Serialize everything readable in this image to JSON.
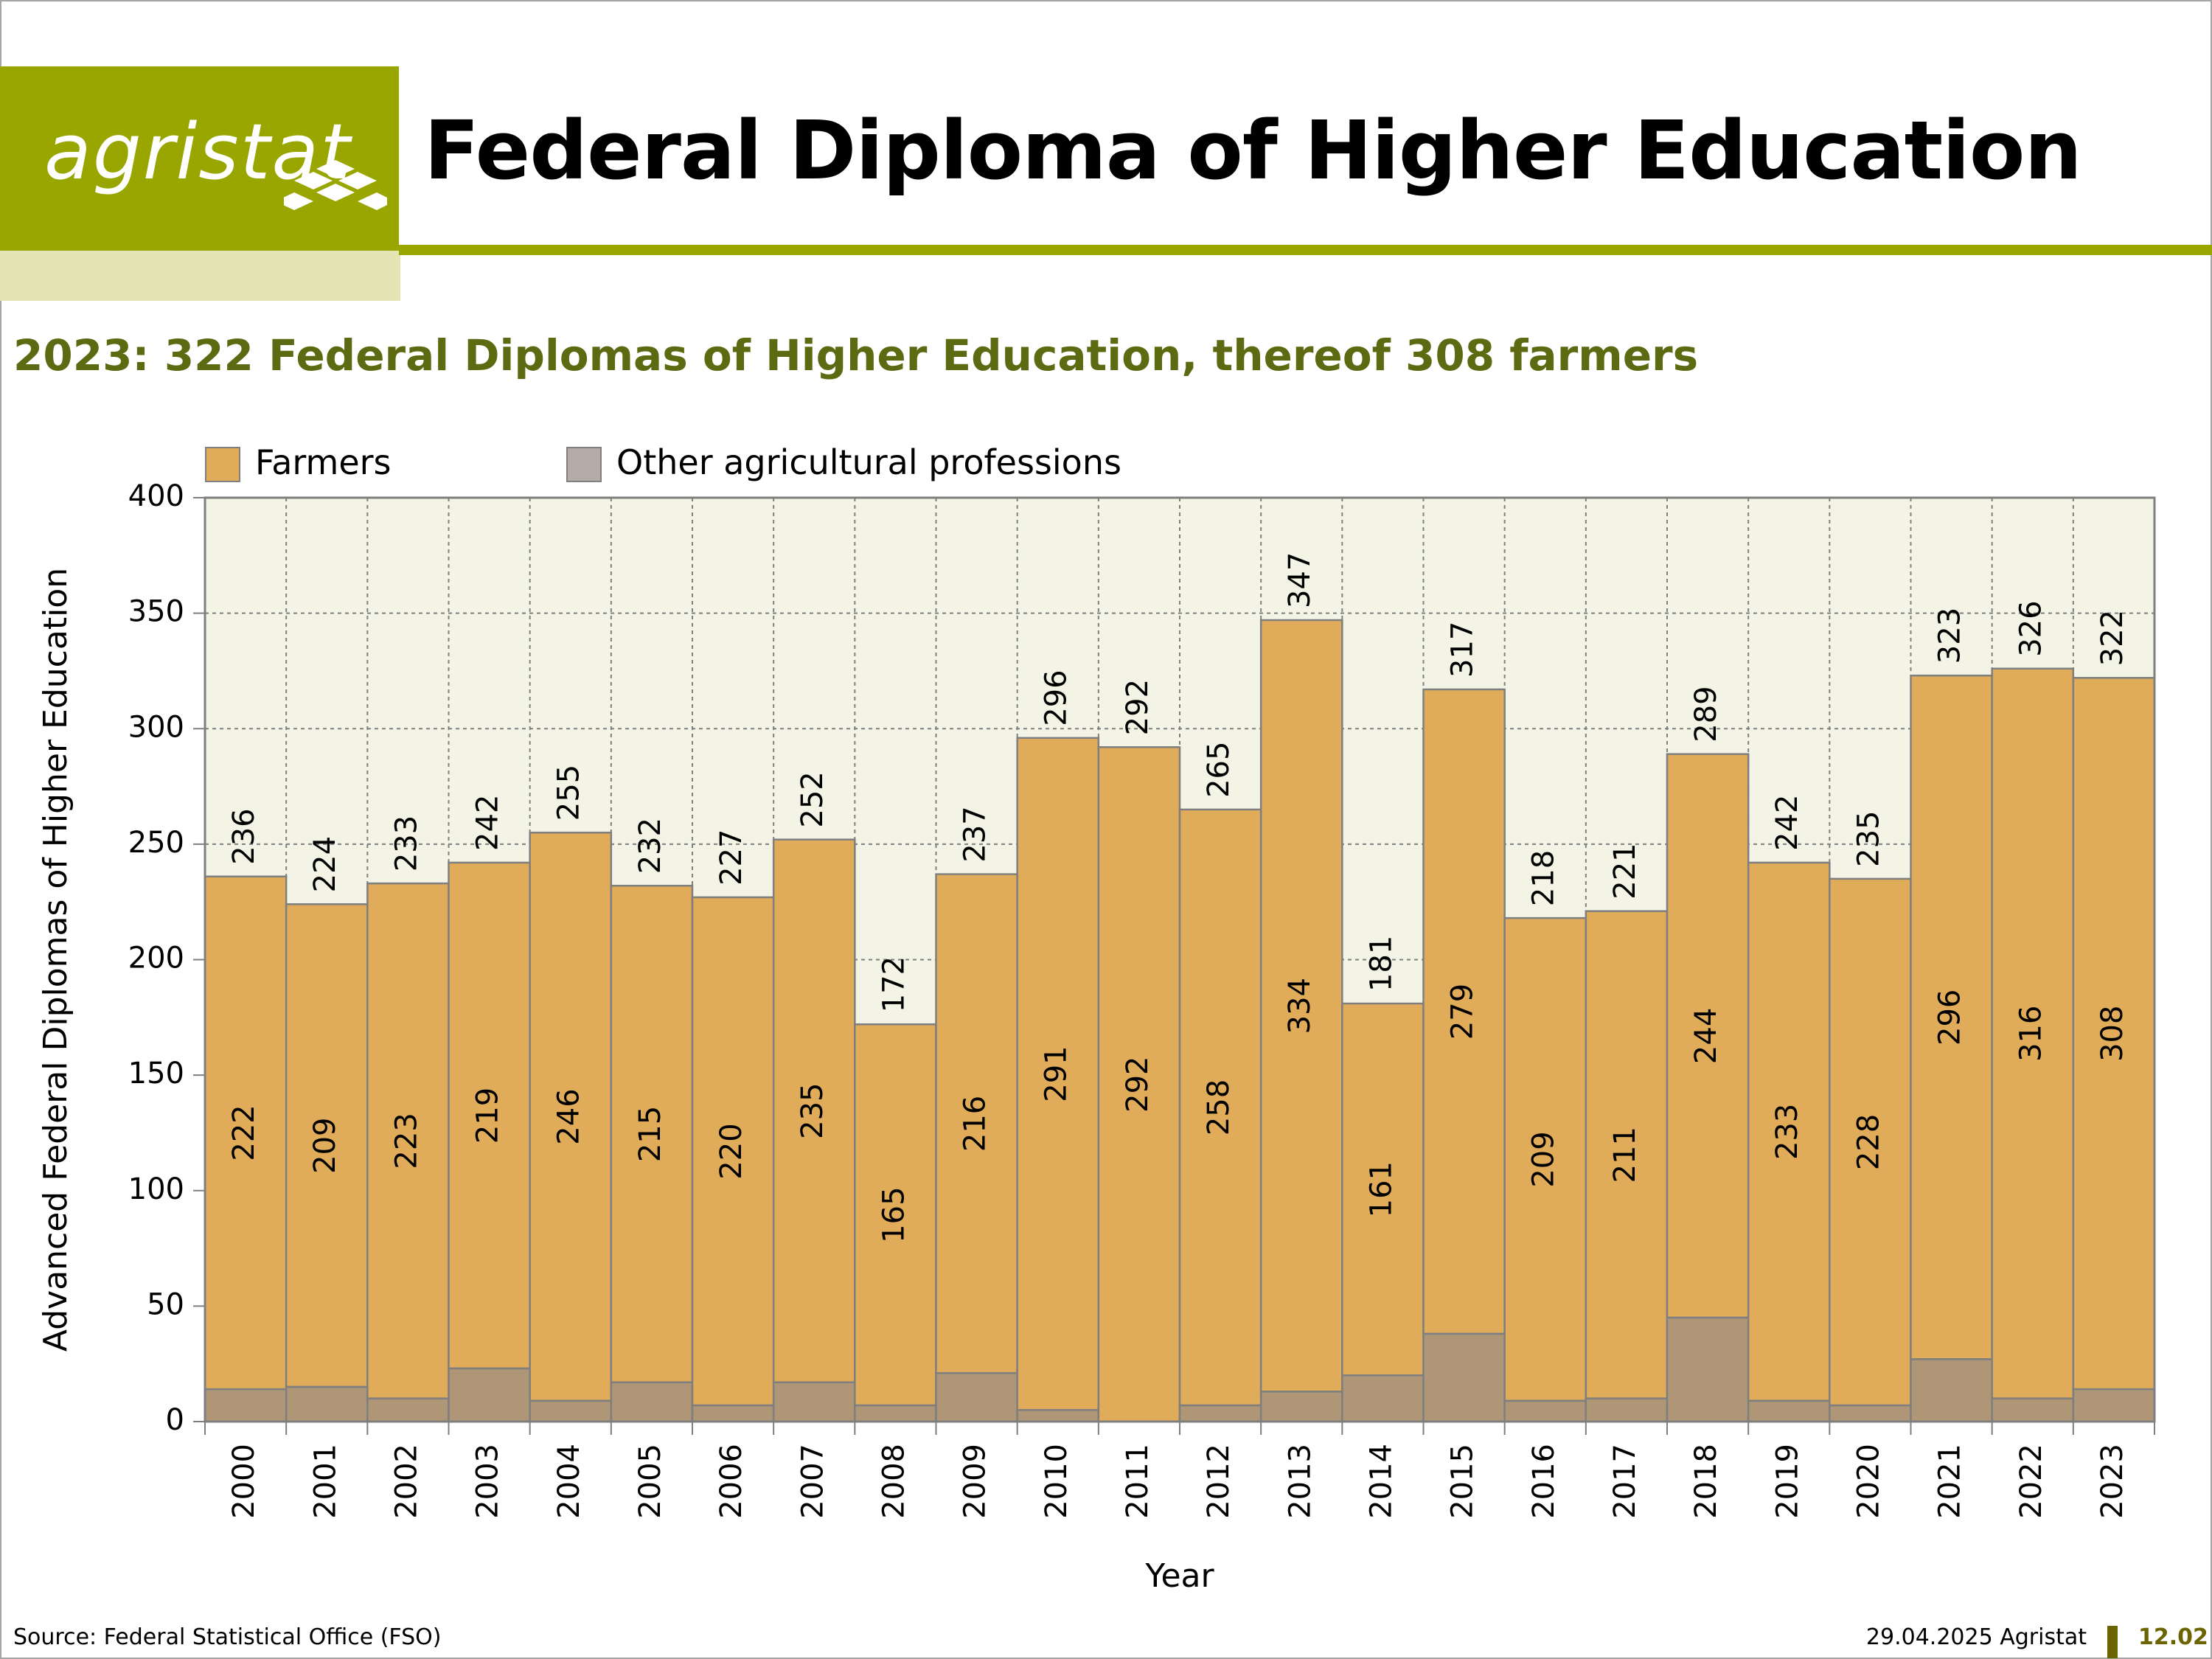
{
  "header": {
    "logo_text": "agristat",
    "title": "Federal Diploma of Higher Education",
    "subtitle": "2023: 322 Federal Diplomas of Higher Education, thereof 308 farmers"
  },
  "legend": {
    "farmers": "Farmers",
    "other": "Other agricultural professions"
  },
  "colors": {
    "brand": "#9aa600",
    "farmers": "#e0ac5a",
    "other": "#ae9676",
    "plot_bg": "#f3f4e6",
    "subtitle": "#5e6a12"
  },
  "chart_data": {
    "type": "bar",
    "stacked": true,
    "xlabel": "Year",
    "ylabel": "Advanced Federal Diplomas of Higher Education",
    "ylim": [
      0,
      400
    ],
    "yticks": [
      0,
      50,
      100,
      150,
      200,
      250,
      300,
      350,
      400
    ],
    "grid": true,
    "legend_position": "top-left",
    "categories": [
      "2000",
      "2001",
      "2002",
      "2003",
      "2004",
      "2005",
      "2006",
      "2007",
      "2008",
      "2009",
      "2010",
      "2011",
      "2012",
      "2013",
      "2014",
      "2015",
      "2016",
      "2017",
      "2018",
      "2019",
      "2020",
      "2021",
      "2022",
      "2023"
    ],
    "series": [
      {
        "name": "Other agricultural professions",
        "values": [
          14,
          15,
          10,
          23,
          9,
          17,
          7,
          17,
          7,
          21,
          5,
          0,
          7,
          13,
          20,
          38,
          9,
          10,
          45,
          9,
          7,
          27,
          10,
          14
        ]
      },
      {
        "name": "Farmers",
        "values": [
          222,
          209,
          223,
          219,
          246,
          215,
          220,
          235,
          165,
          216,
          291,
          292,
          258,
          334,
          161,
          279,
          209,
          211,
          244,
          233,
          228,
          296,
          316,
          308
        ]
      }
    ],
    "totals": [
      236,
      224,
      233,
      242,
      255,
      232,
      227,
      252,
      172,
      237,
      296,
      292,
      265,
      347,
      181,
      317,
      218,
      221,
      289,
      242,
      235,
      323,
      326,
      322
    ]
  },
  "footer": {
    "source": "Source: Federal Statistical Office (FSO)",
    "date": "29.04.2025 Agristat",
    "code": "12.02"
  }
}
